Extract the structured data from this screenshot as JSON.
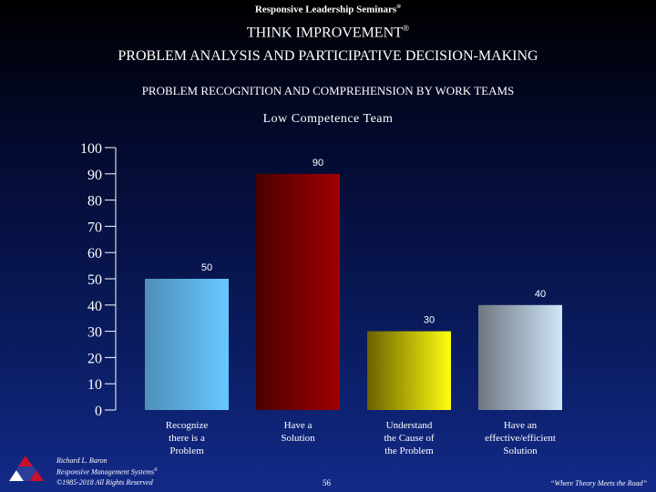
{
  "header": {
    "seminar": "Responsive Leadership Seminars",
    "seminar_mark": "®",
    "title": "THINK IMPROVEMENT",
    "title_mark": "®",
    "subtitle": "PROBLEM ANALYSIS AND PARTICIPATIVE DECISION-MAKING",
    "section": "PROBLEM RECOGNITION AND COMPREHENSION BY WORK TEAMS"
  },
  "chart_data": {
    "type": "bar",
    "title": "Low Competence Team",
    "categories": [
      "Recognize there is a Problem",
      "Have a Solution",
      "Understand the Cause of the Problem",
      "Have an effective/efficient Solution"
    ],
    "category_lines": [
      [
        "Recognize",
        "there is a",
        "Problem"
      ],
      [
        "Have a",
        "Solution"
      ],
      [
        "Understand",
        "the Cause of",
        "the Problem"
      ],
      [
        "Have an",
        "effective/efficient",
        "Solution"
      ]
    ],
    "values": [
      50,
      90,
      30,
      40
    ],
    "value_labels": [
      "50",
      "90",
      "30",
      "40"
    ],
    "ylim": [
      0,
      100
    ],
    "yticks": [
      0,
      10,
      20,
      30,
      40,
      50,
      60,
      70,
      80,
      90,
      100
    ],
    "ytick_labels": [
      "0",
      "10",
      "20",
      "30",
      "40",
      "50",
      "60",
      "70",
      "80",
      "90",
      "100"
    ],
    "bar_colors": [
      [
        "#4f8fb8",
        "#66c8ff"
      ],
      [
        "#4a0000",
        "#a00000"
      ],
      [
        "#6a6000",
        "#ffff10"
      ],
      [
        "#6e7680",
        "#cfe6f8"
      ]
    ],
    "grid": false
  },
  "footer": {
    "author": "Richard L. Baron",
    "company": "Responsive Management Systems",
    "company_mark": "®",
    "copyright": "©1985-2018 All Rights Reserved",
    "page": "56",
    "tagline": "“Where Theory Meets the Road”"
  },
  "colors": {
    "background_top": "#000000",
    "background_bottom": "#132a88",
    "text": "#ffffff"
  }
}
